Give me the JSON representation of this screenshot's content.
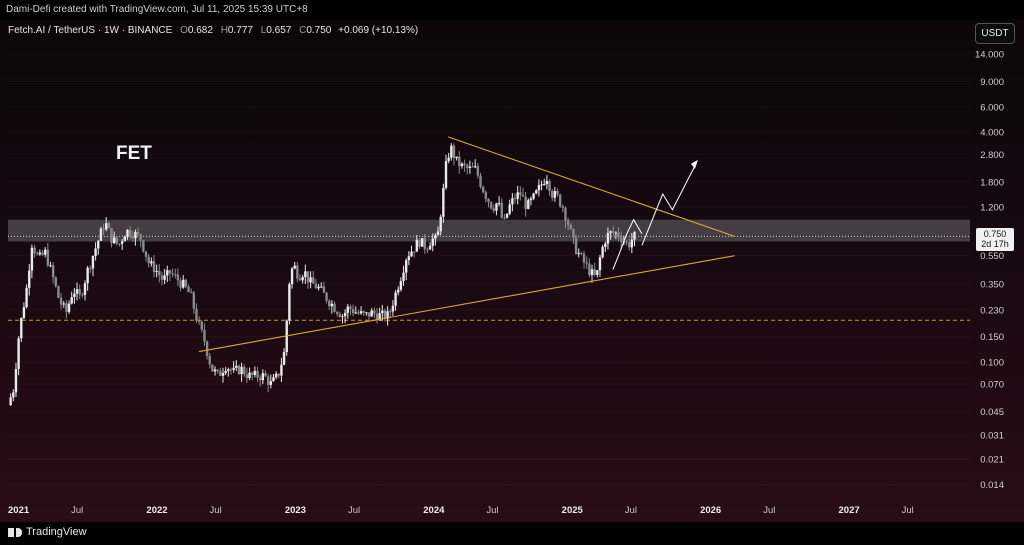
{
  "header": {
    "credit": "Dami-Defi created with TradingView.com, Jul 11, 2025 15:39 UTC+8",
    "symbol": "Fetch.AI / TetherUS · 1W · BINANCE",
    "ohlc": [
      {
        "k": "O",
        "v": "0.682"
      },
      {
        "k": "H",
        "v": "0.777"
      },
      {
        "k": "L",
        "v": "0.657"
      },
      {
        "k": "C",
        "v": "0.750"
      }
    ],
    "change": "+0.069 (+10.13%)",
    "currency_button": "USDT"
  },
  "annotation": {
    "label": "FET"
  },
  "price_tag": {
    "price": "0.750",
    "countdown": "2d 17h"
  },
  "footer": {
    "brand": "TradingView"
  },
  "colors": {
    "up": "#e9e9e9",
    "down": "#8a8a8a",
    "trendline": "#d6a93a",
    "dashed_level": "#c99b35",
    "zone_fill": "#7f7f7f",
    "projection": "#ffffff"
  },
  "chart_data": {
    "type": "candlestick",
    "title": "FET",
    "y_scale": "log",
    "ylim": [
      0.01,
      16
    ],
    "y_ticks": [
      {
        "v": 14,
        "l": "14.000"
      },
      {
        "v": 9,
        "l": "9.000"
      },
      {
        "v": 6,
        "l": "6.000"
      },
      {
        "v": 4,
        "l": "4.000"
      },
      {
        "v": 2.8,
        "l": "2.800"
      },
      {
        "v": 1.8,
        "l": "1.800"
      },
      {
        "v": 1.2,
        "l": "1.200"
      },
      {
        "v": 0.55,
        "l": "0.550"
      },
      {
        "v": 0.35,
        "l": "0.350"
      },
      {
        "v": 0.23,
        "l": "0.230"
      },
      {
        "v": 0.15,
        "l": "0.150"
      },
      {
        "v": 0.1,
        "l": "0.100"
      },
      {
        "v": 0.07,
        "l": "0.070"
      },
      {
        "v": 0.045,
        "l": "0.045"
      },
      {
        "v": 0.031,
        "l": "0.031"
      },
      {
        "v": 0.021,
        "l": "0.021"
      },
      {
        "v": 0.014,
        "l": "0.014"
      }
    ],
    "x_start": 2021.0,
    "x_end": 2027.95,
    "x_ticks": [
      {
        "t": 2021.0,
        "l": "2021",
        "year": true
      },
      {
        "t": 2021.5,
        "l": "Jul",
        "year": false
      },
      {
        "t": 2022.0,
        "l": "2022",
        "year": true
      },
      {
        "t": 2022.5,
        "l": "Jul",
        "year": false
      },
      {
        "t": 2023.0,
        "l": "2023",
        "year": true
      },
      {
        "t": 2023.5,
        "l": "Jul",
        "year": false
      },
      {
        "t": 2024.0,
        "l": "2024",
        "year": true
      },
      {
        "t": 2024.5,
        "l": "Jul",
        "year": false
      },
      {
        "t": 2025.0,
        "l": "2025",
        "year": true
      },
      {
        "t": 2025.5,
        "l": "Jul",
        "year": false
      },
      {
        "t": 2026.0,
        "l": "2026",
        "year": true
      },
      {
        "t": 2026.5,
        "l": "Jul",
        "year": false
      },
      {
        "t": 2027.0,
        "l": "2027",
        "year": true
      },
      {
        "t": 2027.5,
        "l": "Jul",
        "year": false
      }
    ],
    "last_price": 0.75,
    "price_path": [
      [
        2021.0,
        0.05
      ],
      [
        2021.04,
        0.065
      ],
      [
        2021.08,
        0.16
      ],
      [
        2021.14,
        0.35
      ],
      [
        2021.17,
        0.68
      ],
      [
        2021.22,
        0.52
      ],
      [
        2021.27,
        0.58
      ],
      [
        2021.32,
        0.4
      ],
      [
        2021.37,
        0.27
      ],
      [
        2021.42,
        0.22
      ],
      [
        2021.47,
        0.32
      ],
      [
        2021.52,
        0.28
      ],
      [
        2021.58,
        0.45
      ],
      [
        2021.64,
        0.65
      ],
      [
        2021.7,
        0.95
      ],
      [
        2021.75,
        0.72
      ],
      [
        2021.8,
        0.65
      ],
      [
        2021.85,
        0.82
      ],
      [
        2021.9,
        0.8
      ],
      [
        2021.96,
        0.72
      ],
      [
        2022.02,
        0.48
      ],
      [
        2022.06,
        0.45
      ],
      [
        2022.12,
        0.37
      ],
      [
        2022.17,
        0.42
      ],
      [
        2022.22,
        0.38
      ],
      [
        2022.27,
        0.34
      ],
      [
        2022.32,
        0.29
      ],
      [
        2022.37,
        0.19
      ],
      [
        2022.42,
        0.14
      ],
      [
        2022.47,
        0.09
      ],
      [
        2022.52,
        0.08
      ],
      [
        2022.57,
        0.095
      ],
      [
        2022.63,
        0.085
      ],
      [
        2022.68,
        0.09
      ],
      [
        2022.74,
        0.08
      ],
      [
        2022.8,
        0.08
      ],
      [
        2022.85,
        0.08
      ],
      [
        2022.9,
        0.07
      ],
      [
        2022.95,
        0.08
      ],
      [
        2023.0,
        0.12
      ],
      [
        2023.03,
        0.35
      ],
      [
        2023.06,
        0.48
      ],
      [
        2023.1,
        0.4
      ],
      [
        2023.14,
        0.43
      ],
      [
        2023.18,
        0.36
      ],
      [
        2023.24,
        0.33
      ],
      [
        2023.3,
        0.28
      ],
      [
        2023.36,
        0.24
      ],
      [
        2023.42,
        0.21
      ],
      [
        2023.46,
        0.24
      ],
      [
        2023.52,
        0.22
      ],
      [
        2023.58,
        0.21
      ],
      [
        2023.63,
        0.22
      ],
      [
        2023.69,
        0.21
      ],
      [
        2023.75,
        0.21
      ],
      [
        2023.8,
        0.3
      ],
      [
        2023.84,
        0.4
      ],
      [
        2023.88,
        0.55
      ],
      [
        2023.93,
        0.62
      ],
      [
        2023.97,
        0.7
      ],
      [
        2024.02,
        0.63
      ],
      [
        2024.06,
        0.72
      ],
      [
        2024.1,
        0.7
      ],
      [
        2024.14,
        1.4
      ],
      [
        2024.17,
        2.6
      ],
      [
        2024.2,
        3.1
      ],
      [
        2024.24,
        2.5
      ],
      [
        2024.28,
        2.3
      ],
      [
        2024.33,
        2.2
      ],
      [
        2024.38,
        2.2
      ],
      [
        2024.42,
        1.7
      ],
      [
        2024.46,
        1.4
      ],
      [
        2024.5,
        1.2
      ],
      [
        2024.54,
        1.3
      ],
      [
        2024.58,
        0.9
      ],
      [
        2024.62,
        1.2
      ],
      [
        2024.66,
        1.4
      ],
      [
        2024.7,
        1.5
      ],
      [
        2024.75,
        1.2
      ],
      [
        2024.8,
        1.4
      ],
      [
        2024.85,
        1.7
      ],
      [
        2024.89,
        2.0
      ],
      [
        2024.93,
        1.5
      ],
      [
        2024.97,
        1.4
      ],
      [
        2025.01,
        1.2
      ],
      [
        2025.05,
        0.9
      ],
      [
        2025.09,
        0.65
      ],
      [
        2025.13,
        0.55
      ],
      [
        2025.17,
        0.48
      ],
      [
        2025.21,
        0.42
      ],
      [
        2025.25,
        0.38
      ],
      [
        2025.28,
        0.55
      ],
      [
        2025.31,
        0.7
      ],
      [
        2025.34,
        0.78
      ],
      [
        2025.38,
        0.8
      ],
      [
        2025.42,
        0.76
      ],
      [
        2025.45,
        0.7
      ],
      [
        2025.48,
        0.65
      ],
      [
        2025.52,
        0.75
      ]
    ]
  }
}
